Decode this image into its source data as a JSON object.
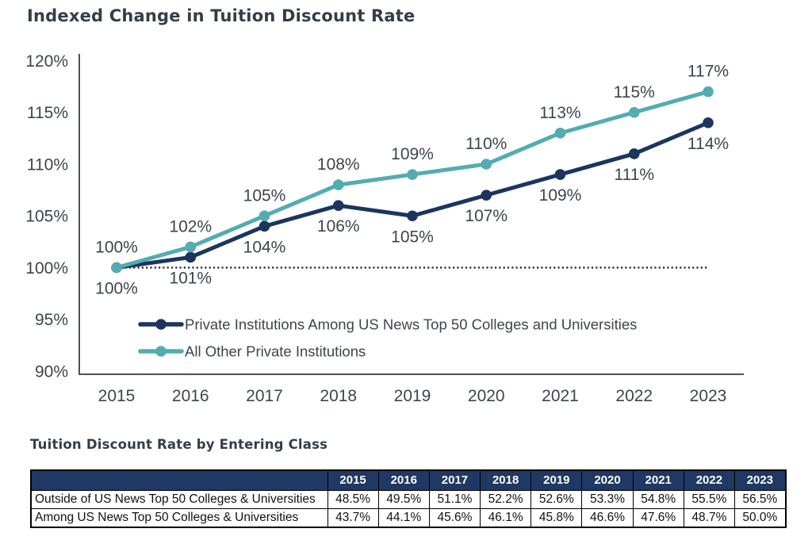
{
  "chart_data": {
    "type": "line",
    "title": "Indexed Change in Tuition Discount Rate",
    "x": [
      2015,
      2016,
      2017,
      2018,
      2019,
      2020,
      2021,
      2022,
      2023
    ],
    "series": [
      {
        "name": "Private Institutions Among US News Top 50 Colleges and Universities",
        "color": "#1b355f",
        "values": [
          100,
          101,
          104,
          106,
          105,
          107,
          109,
          111,
          114
        ],
        "label_side": "below"
      },
      {
        "name": "All Other Private Institutions",
        "color": "#52acb0",
        "values": [
          100,
          102,
          105,
          108,
          109,
          110,
          113,
          115,
          117
        ],
        "label_side": "above"
      }
    ],
    "ylim": [
      90,
      120
    ],
    "y_tick_step": 5,
    "y_tick_format": "percent",
    "reference_line": 100,
    "grid": false,
    "legend_position": "inside-bottom-left",
    "data_label_suffix": "%",
    "axis_color": "#4a5158",
    "reference_line_color": "#222222",
    "label_color": "#3d454d"
  },
  "table": {
    "title": "Tuition Discount Rate by Entering Class",
    "columns": [
      "",
      "2015",
      "2016",
      "2017",
      "2018",
      "2019",
      "2020",
      "2021",
      "2022",
      "2023"
    ],
    "rows": [
      {
        "label": "Outside of US News Top 50 Colleges & Universities",
        "values": [
          "48.5%",
          "49.5%",
          "51.1%",
          "52.2%",
          "52.6%",
          "53.3%",
          "54.8%",
          "55.5%",
          "56.5%"
        ]
      },
      {
        "label": "Among US News Top 50 Colleges & Universities",
        "values": [
          "43.7%",
          "44.1%",
          "45.6%",
          "46.1%",
          "45.8%",
          "46.6%",
          "47.6%",
          "48.7%",
          "50.0%"
        ]
      }
    ],
    "header_bg": "#1f3864",
    "header_text_color": "#ffffff"
  }
}
